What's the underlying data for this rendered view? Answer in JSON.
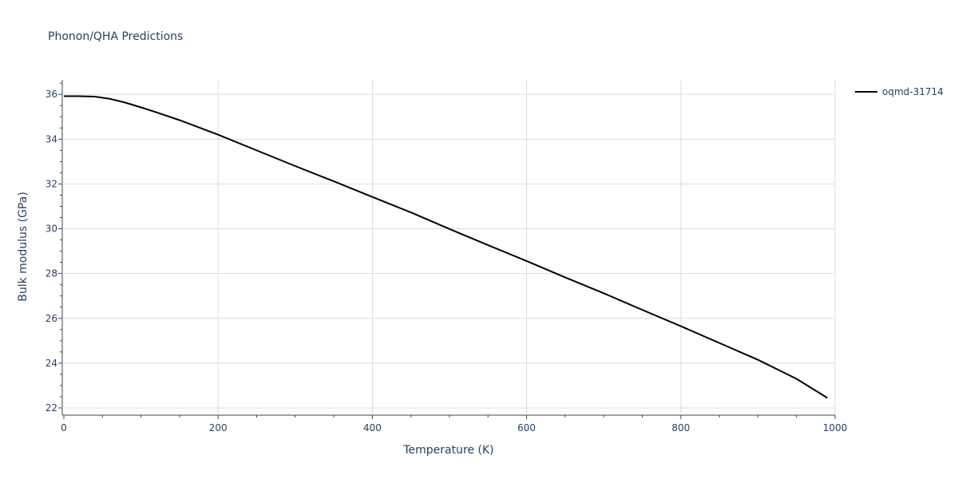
{
  "chart_data": {
    "type": "line",
    "title": "Phonon/QHA Predictions",
    "xlabel": "Temperature (K)",
    "ylabel": "Bulk modulus (GPa)",
    "xlim": [
      0,
      1000
    ],
    "ylim": [
      21.75,
      36.65
    ],
    "xticks": [
      0,
      200,
      400,
      600,
      800,
      1000
    ],
    "yticks": [
      22,
      24,
      26,
      28,
      30,
      32,
      34,
      36
    ],
    "grid": true,
    "legend_position": "top-right",
    "series": [
      {
        "name": "oqmd-31714",
        "color": "#000000",
        "x": [
          0,
          20,
          40,
          60,
          80,
          100,
          120,
          150,
          200,
          250,
          300,
          350,
          400,
          450,
          500,
          550,
          600,
          650,
          700,
          750,
          800,
          850,
          900,
          950,
          990
        ],
        "y": [
          35.92,
          35.92,
          35.9,
          35.8,
          35.63,
          35.42,
          35.2,
          34.85,
          34.2,
          33.5,
          32.8,
          32.12,
          31.42,
          30.73,
          29.99,
          29.27,
          28.56,
          27.83,
          27.12,
          26.38,
          25.65,
          24.9,
          24.15,
          23.3,
          22.45
        ]
      }
    ]
  }
}
